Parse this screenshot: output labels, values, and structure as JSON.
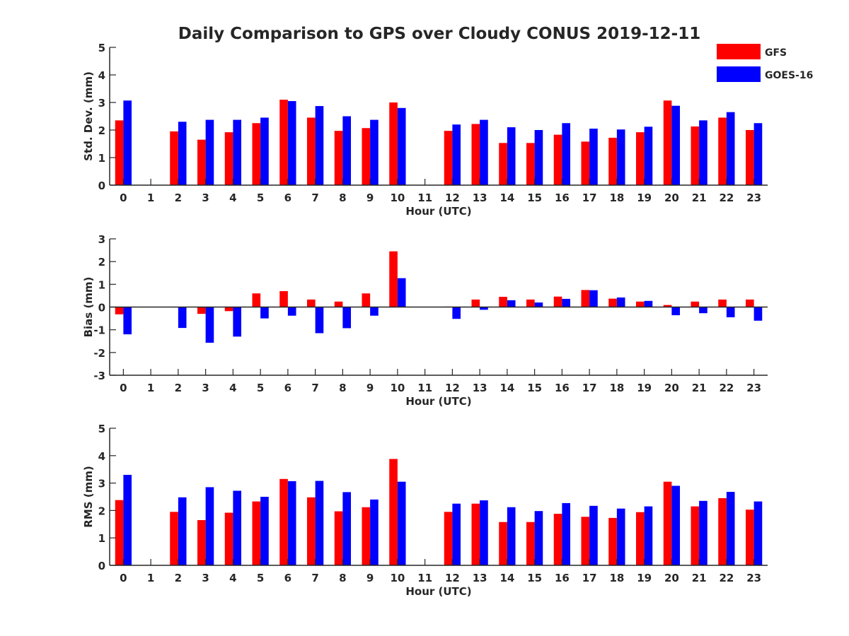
{
  "title": "Daily Comparison to GPS over Cloudy CONUS 2019-12-11",
  "colors": {
    "gfs": "#ff0000",
    "goes": "#0000ff",
    "axis": "#262626"
  },
  "legend": {
    "placement": "top-right",
    "entries": [
      {
        "name": "GFS",
        "color": "#ff0000"
      },
      {
        "name": "GOES-16",
        "color": "#0000ff"
      }
    ]
  },
  "chart_data": [
    {
      "type": "bar",
      "title": "Daily Comparison to GPS over Cloudy CONUS 2019-12-11",
      "xlabel": "Hour (UTC)",
      "ylabel": "Std. Dev. (mm)",
      "ylim": [
        0,
        5
      ],
      "yticks": [
        0,
        1,
        2,
        3,
        4,
        5
      ],
      "categories": [
        "0",
        "1",
        "2",
        "3",
        "4",
        "5",
        "6",
        "7",
        "8",
        "9",
        "10",
        "11",
        "12",
        "13",
        "14",
        "15",
        "16",
        "17",
        "18",
        "19",
        "20",
        "21",
        "22",
        "23"
      ],
      "series": [
        {
          "name": "GFS",
          "values": [
            2.35,
            null,
            1.95,
            1.65,
            1.92,
            2.25,
            3.1,
            2.45,
            1.97,
            2.07,
            3.0,
            null,
            1.97,
            2.22,
            1.53,
            1.53,
            1.83,
            1.58,
            1.72,
            1.92,
            3.07,
            2.13,
            2.45,
            2.0
          ]
        },
        {
          "name": "GOES-16",
          "values": [
            3.07,
            null,
            2.3,
            2.37,
            2.37,
            2.45,
            3.05,
            2.87,
            2.5,
            2.37,
            2.8,
            null,
            2.2,
            2.37,
            2.1,
            2.0,
            2.25,
            2.05,
            2.02,
            2.12,
            2.88,
            2.35,
            2.65,
            2.25
          ]
        }
      ]
    },
    {
      "type": "bar",
      "xlabel": "Hour (UTC)",
      "ylabel": "Bias (mm)",
      "ylim": [
        -3,
        3
      ],
      "yticks": [
        -3,
        -2,
        -1,
        0,
        1,
        2,
        3
      ],
      "categories": [
        "0",
        "1",
        "2",
        "3",
        "4",
        "5",
        "6",
        "7",
        "8",
        "9",
        "10",
        "11",
        "12",
        "13",
        "14",
        "15",
        "16",
        "17",
        "18",
        "19",
        "20",
        "21",
        "22",
        "23"
      ],
      "series": [
        {
          "name": "GFS",
          "values": [
            -0.32,
            null,
            0.0,
            -0.3,
            -0.18,
            0.6,
            0.7,
            0.33,
            0.24,
            0.6,
            2.45,
            null,
            0.02,
            0.33,
            0.45,
            0.33,
            0.46,
            0.75,
            0.37,
            0.24,
            0.09,
            0.24,
            0.33,
            0.33
          ]
        },
        {
          "name": "GOES-16",
          "values": [
            -1.2,
            null,
            -0.92,
            -1.57,
            -1.3,
            -0.5,
            -0.38,
            -1.15,
            -0.93,
            -0.38,
            1.27,
            null,
            -0.52,
            -0.12,
            0.3,
            0.2,
            0.36,
            0.74,
            0.42,
            0.27,
            -0.36,
            -0.27,
            -0.45,
            -0.6
          ]
        }
      ]
    },
    {
      "type": "bar",
      "xlabel": "Hour (UTC)",
      "ylabel": "RMS (mm)",
      "ylim": [
        0,
        5
      ],
      "yticks": [
        0,
        1,
        2,
        3,
        4,
        5
      ],
      "categories": [
        "0",
        "1",
        "2",
        "3",
        "4",
        "5",
        "6",
        "7",
        "8",
        "9",
        "10",
        "11",
        "12",
        "13",
        "14",
        "15",
        "16",
        "17",
        "18",
        "19",
        "20",
        "21",
        "22",
        "23"
      ],
      "series": [
        {
          "name": "GFS",
          "values": [
            2.38,
            null,
            1.95,
            1.65,
            1.92,
            2.33,
            3.15,
            2.48,
            1.97,
            2.12,
            3.88,
            null,
            1.95,
            2.25,
            1.58,
            1.58,
            1.88,
            1.77,
            1.73,
            1.94,
            3.05,
            2.15,
            2.45,
            2.03
          ]
        },
        {
          "name": "GOES-16",
          "values": [
            3.3,
            null,
            2.48,
            2.85,
            2.72,
            2.5,
            3.07,
            3.08,
            2.67,
            2.4,
            3.05,
            null,
            2.25,
            2.37,
            2.12,
            1.98,
            2.27,
            2.17,
            2.07,
            2.15,
            2.9,
            2.35,
            2.68,
            2.33
          ]
        }
      ]
    }
  ]
}
